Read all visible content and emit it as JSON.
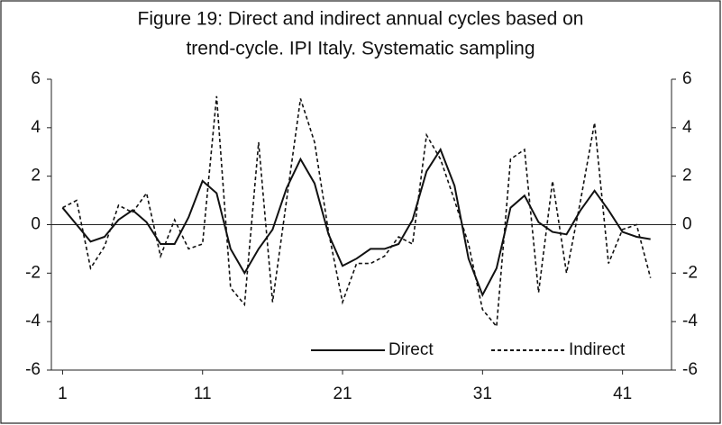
{
  "chart_data": {
    "type": "line",
    "title": [
      "Figure 19: Direct and indirect annual cycles based on",
      "trend-cycle. IPI Italy. Systematic sampling"
    ],
    "x": [
      1,
      2,
      3,
      4,
      5,
      6,
      7,
      8,
      9,
      10,
      11,
      12,
      13,
      14,
      15,
      16,
      17,
      18,
      19,
      20,
      21,
      22,
      23,
      24,
      25,
      26,
      27,
      28,
      29,
      30,
      31,
      32,
      33,
      34,
      35,
      36,
      37,
      38,
      39,
      40,
      41,
      42,
      43
    ],
    "xlim": [
      0.2,
      44.5
    ],
    "xticks": [
      1,
      11,
      21,
      31,
      41
    ],
    "ylim": [
      -6,
      6
    ],
    "yticks": [
      -6,
      -4,
      -2,
      0,
      2,
      4,
      6
    ],
    "y2lim": [
      -6,
      6
    ],
    "y2ticks": [
      -6,
      -4,
      -2,
      0,
      2,
      4,
      6
    ],
    "legend": "bottom",
    "series": [
      {
        "name": "Direct",
        "color": "#111111",
        "dash": "solid",
        "values": [
          0.7,
          0,
          -0.7,
          -0.5,
          0.2,
          0.6,
          0.1,
          -0.8,
          -0.8,
          0.3,
          1.8,
          1.3,
          -1.0,
          -2.0,
          -1.0,
          -0.2,
          1.5,
          2.7,
          1.7,
          -0.4,
          -1.7,
          -1.4,
          -1.0,
          -1.0,
          -0.8,
          0.2,
          2.2,
          3.1,
          1.6,
          -1.4,
          -2.9,
          -1.8,
          0.7,
          1.2,
          0.1,
          -0.3,
          -0.4,
          0.6,
          1.4,
          0.6,
          -0.3,
          -0.5,
          -0.6
        ]
      },
      {
        "name": "Indirect",
        "color": "#111111",
        "dash": "dashed",
        "values": [
          0.7,
          1.0,
          -1.8,
          -0.9,
          0.8,
          0.5,
          1.3,
          -1.3,
          0.2,
          -1.0,
          -0.8,
          5.3,
          -2.6,
          -3.3,
          3.4,
          -3.2,
          1.0,
          5.2,
          3.4,
          -0.3,
          -3.2,
          -1.6,
          -1.6,
          -1.3,
          -0.5,
          -0.8,
          3.7,
          2.7,
          1.0,
          -0.8,
          -3.5,
          -4.2,
          2.7,
          3.1,
          -2.8,
          1.8,
          -2.0,
          1.0,
          4.2,
          -1.6,
          -0.2,
          0.0,
          -2.2
        ]
      }
    ]
  }
}
